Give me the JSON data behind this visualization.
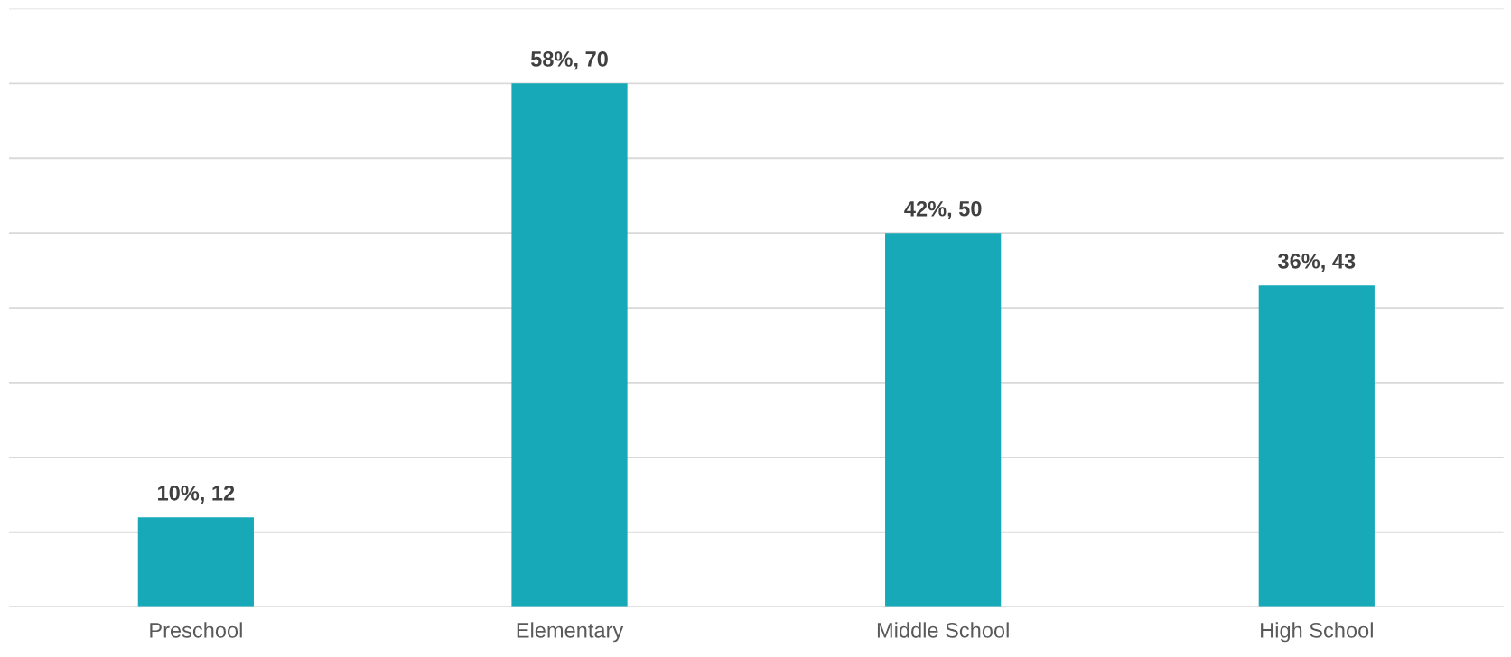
{
  "chart_data": {
    "type": "bar",
    "categories": [
      "Preschool",
      "Elementary",
      "Middle School",
      "High School"
    ],
    "values": [
      12,
      70,
      50,
      43
    ],
    "value_labels": [
      "10%, 12",
      "58%, 70",
      "42%, 50",
      "36%, 43"
    ],
    "color": "#17a9b8",
    "ylim": [
      0,
      80
    ],
    "yticks": [
      {
        "value": 0,
        "label": null
      },
      {
        "value": 10,
        "label": null
      },
      {
        "value": 20,
        "label": null
      },
      {
        "value": 30,
        "label": null
      },
      {
        "value": 40,
        "label": null
      },
      {
        "value": 50,
        "label": null
      },
      {
        "value": 60,
        "label": null
      },
      {
        "value": 70,
        "label": null
      },
      {
        "value": 80,
        "label": null
      }
    ],
    "grid": "y",
    "tick_labels": "x",
    "legend": false
  }
}
